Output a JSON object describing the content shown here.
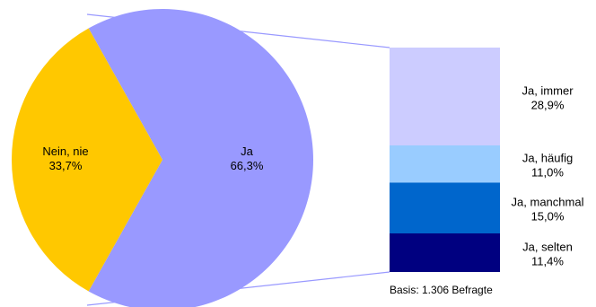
{
  "chart_data": {
    "type": "pie",
    "slices": [
      {
        "label": "Nein, nie",
        "value": 33.7,
        "value_text": "33,7%",
        "color": "#FFC800"
      },
      {
        "label": "Ja",
        "value": 66.3,
        "value_text": "66,3%",
        "color": "#9999FF"
      }
    ],
    "breakdown_of": "Ja",
    "breakdown": [
      {
        "label": "Ja, immer",
        "value": 28.9,
        "value_text": "28,9%",
        "color": "#CCCCFF"
      },
      {
        "label": "Ja, häufig",
        "value": 11.0,
        "value_text": "11,0%",
        "color": "#99CCFF"
      },
      {
        "label": "Ja, manchmal",
        "value": 15.0,
        "value_text": "15,0%",
        "color": "#0066CC"
      },
      {
        "label": "Ja, selten",
        "value": 11.4,
        "value_text": "11,4%",
        "color": "#000080"
      }
    ],
    "connector_color": "#9999FF"
  },
  "footnote": "Basis: 1.306 Befragte"
}
